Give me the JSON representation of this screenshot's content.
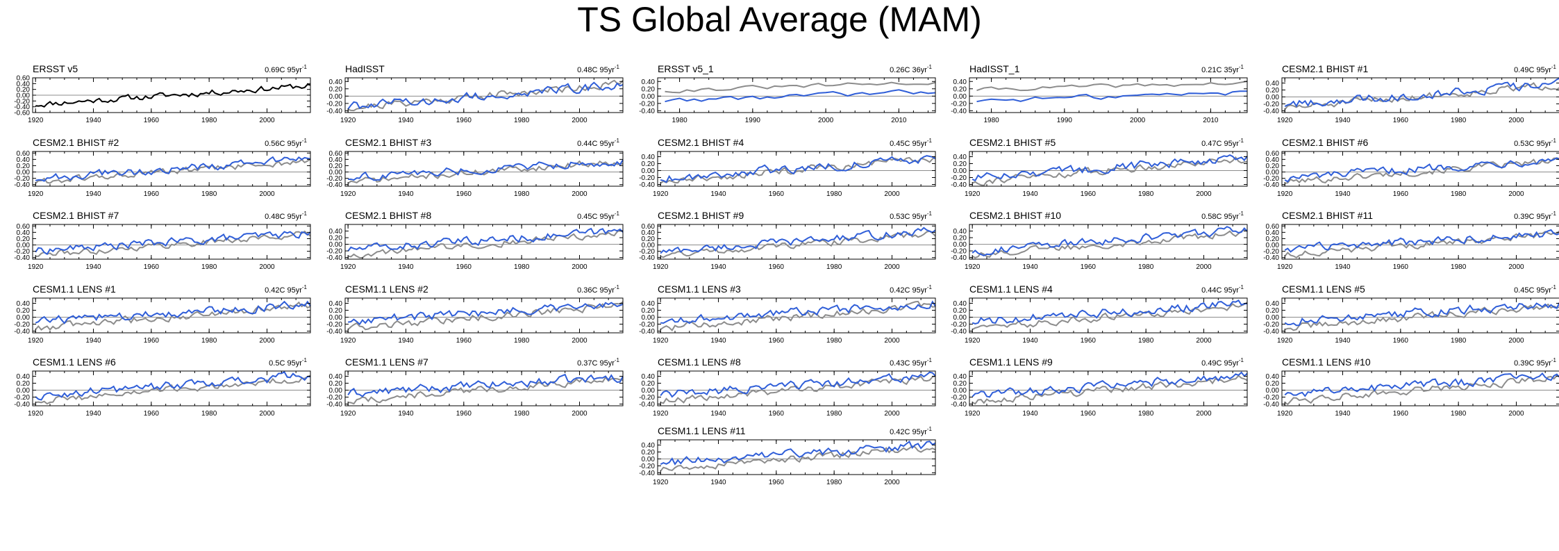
{
  "title": "TS Global Average (MAM)",
  "colors": {
    "observed": "#8c8c8c",
    "model": "#2f5ed8",
    "ersst_line": "#000000",
    "zero_line": "#8c8c8c"
  },
  "chart_data": [
    {
      "type": "line",
      "title": "ERSST v5",
      "trend": "0.69C 95yr",
      "xlim": [
        1919,
        2015
      ],
      "xticks": [
        1920,
        1940,
        1960,
        1980,
        2000
      ],
      "ylim": [
        -0.6,
        0.6
      ],
      "yticks": [
        "0.60",
        "0.40",
        "0.20",
        "0.00",
        "-0.20",
        "-0.40",
        "-0.60"
      ],
      "tick_values": [
        0.6,
        0.4,
        0.2,
        0.0,
        -0.2,
        -0.4,
        -0.6
      ],
      "base_start": -0.32,
      "base_end": 0.33,
      "seed": 11,
      "single": true
    },
    {
      "type": "line",
      "title": "HadISST",
      "trend": "0.48C 95yr",
      "xlim": [
        1919,
        2015
      ],
      "xticks": [
        1920,
        1940,
        1960,
        1980,
        2000
      ],
      "ylim": [
        -0.45,
        0.5
      ],
      "yticks": [
        "0.40",
        "0.20",
        "0.00",
        "-0.20",
        "-0.40"
      ],
      "tick_values": [
        0.4,
        0.2,
        0.0,
        -0.2,
        -0.4
      ],
      "base_start": -0.32,
      "base_end": 0.35,
      "seed": 21,
      "model_start": -0.3,
      "model_end": 0.3
    },
    {
      "type": "line",
      "title": "ERSST v5_1",
      "trend": "0.26C 36yr",
      "xlim": [
        1977,
        2015
      ],
      "xticks": [
        1980,
        1990,
        2000,
        2010
      ],
      "ylim": [
        -0.45,
        0.5
      ],
      "yticks": [
        "0.40",
        "0.20",
        "0.00",
        "-0.20",
        "-0.40"
      ],
      "tick_values": [
        0.4,
        0.2,
        0.0,
        -0.2,
        -0.4
      ],
      "base_start": 0.15,
      "base_end": 0.38,
      "seed": 31,
      "model_start": -0.12,
      "model_end": 0.12
    },
    {
      "type": "line",
      "title": "HadISST_1",
      "trend": "0.21C 35yr",
      "xlim": [
        1977,
        2015
      ],
      "xticks": [
        1980,
        1990,
        2000,
        2010
      ],
      "ylim": [
        -0.45,
        0.5
      ],
      "yticks": [
        "0.40",
        "0.20",
        "0.00",
        "-0.20",
        "-0.40"
      ],
      "tick_values": [
        0.4,
        0.2,
        0.0,
        -0.2,
        -0.4
      ],
      "base_start": 0.18,
      "base_end": 0.36,
      "seed": 41,
      "model_start": -0.12,
      "model_end": 0.1
    },
    {
      "type": "line",
      "title": "CESM2.1 BHIST #1",
      "trend": "0.49C 95yr",
      "xlim": [
        1919,
        2015
      ],
      "xticks": [
        1920,
        1940,
        1960,
        1980,
        2000
      ],
      "ylim": [
        -0.45,
        0.55
      ],
      "yticks": [
        "0.40",
        "0.20",
        "0.00",
        "-0.20",
        "-0.40"
      ],
      "tick_values": [
        0.4,
        0.2,
        0.0,
        -0.2,
        -0.4
      ],
      "base_start": -0.32,
      "base_end": 0.35,
      "seed": 51,
      "model_start": -0.22,
      "model_end": 0.38
    },
    {
      "type": "line",
      "title": "CESM2.1 BHIST #2",
      "trend": "0.56C 95yr",
      "xlim": [
        1919,
        2015
      ],
      "xticks": [
        1920,
        1940,
        1960,
        1980,
        2000
      ],
      "ylim": [
        -0.45,
        0.65
      ],
      "yticks": [
        "0.60",
        "0.40",
        "0.20",
        "0.00",
        "-0.20",
        "-0.40"
      ],
      "tick_values": [
        0.6,
        0.4,
        0.2,
        0.0,
        -0.2,
        -0.4
      ],
      "base_start": -0.32,
      "base_end": 0.35,
      "seed": 61,
      "model_start": -0.22,
      "model_end": 0.42
    },
    {
      "type": "line",
      "title": "CESM2.1 BHIST #3",
      "trend": "0.44C 95yr",
      "xlim": [
        1919,
        2015
      ],
      "xticks": [
        1920,
        1940,
        1960,
        1980,
        2000
      ],
      "ylim": [
        -0.45,
        0.65
      ],
      "yticks": [
        "0.60",
        "0.40",
        "0.20",
        "0.00",
        "-0.20",
        "-0.40"
      ],
      "tick_values": [
        0.6,
        0.4,
        0.2,
        0.0,
        -0.2,
        -0.4
      ],
      "base_start": -0.32,
      "base_end": 0.35,
      "seed": 71,
      "model_start": -0.18,
      "model_end": 0.35
    },
    {
      "type": "line",
      "title": "CESM2.1 BHIST #4",
      "trend": "0.45C 95yr",
      "xlim": [
        1919,
        2015
      ],
      "xticks": [
        1920,
        1940,
        1960,
        1980,
        2000
      ],
      "ylim": [
        -0.45,
        0.55
      ],
      "yticks": [
        "0.40",
        "0.20",
        "0.00",
        "-0.20",
        "-0.40"
      ],
      "tick_values": [
        0.4,
        0.2,
        0.0,
        -0.2,
        -0.4
      ],
      "base_start": -0.32,
      "base_end": 0.35,
      "seed": 81,
      "model_start": -0.22,
      "model_end": 0.35
    },
    {
      "type": "line",
      "title": "CESM2.1 BHIST #5",
      "trend": "0.47C 95yr",
      "xlim": [
        1919,
        2015
      ],
      "xticks": [
        1920,
        1940,
        1960,
        1980,
        2000
      ],
      "ylim": [
        -0.45,
        0.55
      ],
      "yticks": [
        "0.40",
        "0.20",
        "0.00",
        "-0.20",
        "-0.40"
      ],
      "tick_values": [
        0.4,
        0.2,
        0.0,
        -0.2,
        -0.4
      ],
      "base_start": -0.32,
      "base_end": 0.35,
      "seed": 91,
      "model_start": -0.2,
      "model_end": 0.38
    },
    {
      "type": "line",
      "title": "CESM2.1 BHIST #6",
      "trend": "0.53C 95yr",
      "xlim": [
        1919,
        2015
      ],
      "xticks": [
        1920,
        1940,
        1960,
        1980,
        2000
      ],
      "ylim": [
        -0.45,
        0.65
      ],
      "yticks": [
        "0.60",
        "0.40",
        "0.20",
        "0.00",
        "-0.20",
        "-0.40"
      ],
      "tick_values": [
        0.6,
        0.4,
        0.2,
        0.0,
        -0.2,
        -0.4
      ],
      "base_start": -0.32,
      "base_end": 0.35,
      "seed": 101,
      "model_start": -0.2,
      "model_end": 0.42
    },
    {
      "type": "line",
      "title": "CESM2.1 BHIST #7",
      "trend": "0.48C 95yr",
      "xlim": [
        1919,
        2015
      ],
      "xticks": [
        1920,
        1940,
        1960,
        1980,
        2000
      ],
      "ylim": [
        -0.45,
        0.65
      ],
      "yticks": [
        "0.60",
        "0.40",
        "0.20",
        "0.00",
        "-0.20",
        "-0.40"
      ],
      "tick_values": [
        0.6,
        0.4,
        0.2,
        0.0,
        -0.2,
        -0.4
      ],
      "base_start": -0.32,
      "base_end": 0.35,
      "seed": 111,
      "model_start": -0.18,
      "model_end": 0.38
    },
    {
      "type": "line",
      "title": "CESM2.1 BHIST #8",
      "trend": "0.45C 95yr",
      "xlim": [
        1919,
        2015
      ],
      "xticks": [
        1920,
        1940,
        1960,
        1980,
        2000
      ],
      "ylim": [
        -0.45,
        0.6
      ],
      "yticks": [
        "0.40",
        "0.20",
        "0.00",
        "-0.20",
        "-0.40"
      ],
      "tick_values": [
        0.4,
        0.2,
        0.0,
        -0.2,
        -0.4
      ],
      "base_start": -0.32,
      "base_end": 0.35,
      "seed": 121,
      "model_start": -0.16,
      "model_end": 0.4
    },
    {
      "type": "line",
      "title": "CESM2.1 BHIST #9",
      "trend": "0.53C 95yr",
      "xlim": [
        1919,
        2015
      ],
      "xticks": [
        1920,
        1940,
        1960,
        1980,
        2000
      ],
      "ylim": [
        -0.45,
        0.65
      ],
      "yticks": [
        "0.60",
        "0.40",
        "0.20",
        "0.00",
        "-0.20",
        "-0.40"
      ],
      "tick_values": [
        0.6,
        0.4,
        0.2,
        0.0,
        -0.2,
        -0.4
      ],
      "base_start": -0.32,
      "base_end": 0.35,
      "seed": 131,
      "model_start": -0.22,
      "model_end": 0.45
    },
    {
      "type": "line",
      "title": "CESM2.1 BHIST #10",
      "trend": "0.58C 95yr",
      "xlim": [
        1919,
        2015
      ],
      "xticks": [
        1920,
        1940,
        1960,
        1980,
        2000
      ],
      "ylim": [
        -0.45,
        0.6
      ],
      "yticks": [
        "0.40",
        "0.20",
        "0.00",
        "-0.20",
        "-0.40"
      ],
      "tick_values": [
        0.4,
        0.2,
        0.0,
        -0.2,
        -0.4
      ],
      "base_start": -0.32,
      "base_end": 0.35,
      "seed": 141,
      "model_start": -0.22,
      "model_end": 0.45
    },
    {
      "type": "line",
      "title": "CESM2.1 BHIST #11",
      "trend": "0.39C 95yr",
      "xlim": [
        1919,
        2015
      ],
      "xticks": [
        1920,
        1940,
        1960,
        1980,
        2000
      ],
      "ylim": [
        -0.45,
        0.65
      ],
      "yticks": [
        "0.60",
        "0.40",
        "0.20",
        "0.00",
        "-0.20",
        "-0.40"
      ],
      "tick_values": [
        0.6,
        0.4,
        0.2,
        0.0,
        -0.2,
        -0.4
      ],
      "base_start": -0.32,
      "base_end": 0.35,
      "seed": 151,
      "model_start": -0.12,
      "model_end": 0.35
    },
    {
      "type": "line",
      "title": "CESM1.1 LENS #1",
      "trend": "0.42C 95yr",
      "xlim": [
        1919,
        2015
      ],
      "xticks": [
        1920,
        1940,
        1960,
        1980,
        2000
      ],
      "ylim": [
        -0.45,
        0.55
      ],
      "yticks": [
        "0.40",
        "0.20",
        "0.00",
        "-0.20",
        "-0.40"
      ],
      "tick_values": [
        0.4,
        0.2,
        0.0,
        -0.2,
        -0.4
      ],
      "base_start": -0.32,
      "base_end": 0.35,
      "seed": 161,
      "model_start": -0.12,
      "model_end": 0.38
    },
    {
      "type": "line",
      "title": "CESM1.1 LENS #2",
      "trend": "0.36C 95yr",
      "xlim": [
        1919,
        2015
      ],
      "xticks": [
        1920,
        1940,
        1960,
        1980,
        2000
      ],
      "ylim": [
        -0.45,
        0.55
      ],
      "yticks": [
        "0.40",
        "0.20",
        "0.00",
        "-0.20",
        "-0.40"
      ],
      "tick_values": [
        0.4,
        0.2,
        0.0,
        -0.2,
        -0.4
      ],
      "base_start": -0.32,
      "base_end": 0.35,
      "seed": 171,
      "model_start": -0.1,
      "model_end": 0.38
    },
    {
      "type": "line",
      "title": "CESM1.1 LENS #3",
      "trend": "0.42C 95yr",
      "xlim": [
        1919,
        2015
      ],
      "xticks": [
        1920,
        1940,
        1960,
        1980,
        2000
      ],
      "ylim": [
        -0.45,
        0.55
      ],
      "yticks": [
        "0.40",
        "0.20",
        "0.00",
        "-0.20",
        "-0.40"
      ],
      "tick_values": [
        0.4,
        0.2,
        0.0,
        -0.2,
        -0.4
      ],
      "base_start": -0.32,
      "base_end": 0.35,
      "seed": 181,
      "model_start": -0.12,
      "model_end": 0.4
    },
    {
      "type": "line",
      "title": "CESM1.1 LENS #4",
      "trend": "0.44C 95yr",
      "xlim": [
        1919,
        2015
      ],
      "xticks": [
        1920,
        1940,
        1960,
        1980,
        2000
      ],
      "ylim": [
        -0.45,
        0.55
      ],
      "yticks": [
        "0.40",
        "0.20",
        "0.00",
        "-0.20",
        "-0.40"
      ],
      "tick_values": [
        0.4,
        0.2,
        0.0,
        -0.2,
        -0.4
      ],
      "base_start": -0.32,
      "base_end": 0.35,
      "seed": 191,
      "model_start": -0.12,
      "model_end": 0.4
    },
    {
      "type": "line",
      "title": "CESM1.1 LENS #5",
      "trend": "0.45C 95yr",
      "xlim": [
        1919,
        2015
      ],
      "xticks": [
        1920,
        1940,
        1960,
        1980,
        2000
      ],
      "ylim": [
        -0.45,
        0.55
      ],
      "yticks": [
        "0.40",
        "0.20",
        "0.00",
        "-0.20",
        "-0.40"
      ],
      "tick_values": [
        0.4,
        0.2,
        0.0,
        -0.2,
        -0.4
      ],
      "base_start": -0.32,
      "base_end": 0.35,
      "seed": 201,
      "model_start": -0.12,
      "model_end": 0.4
    },
    {
      "type": "line",
      "title": "CESM1.1 LENS #6",
      "trend": "0.5C 95yr",
      "xlim": [
        1919,
        2015
      ],
      "xticks": [
        1920,
        1940,
        1960,
        1980,
        2000
      ],
      "ylim": [
        -0.45,
        0.55
      ],
      "yticks": [
        "0.40",
        "0.20",
        "0.00",
        "-0.20",
        "-0.40"
      ],
      "tick_values": [
        0.4,
        0.2,
        0.0,
        -0.2,
        -0.4
      ],
      "base_start": -0.32,
      "base_end": 0.35,
      "seed": 211,
      "model_start": -0.15,
      "model_end": 0.42
    },
    {
      "type": "line",
      "title": "CESM1.1 LENS #7",
      "trend": "0.37C 95yr",
      "xlim": [
        1919,
        2015
      ],
      "xticks": [
        1920,
        1940,
        1960,
        1980,
        2000
      ],
      "ylim": [
        -0.45,
        0.55
      ],
      "yticks": [
        "0.40",
        "0.20",
        "0.00",
        "-0.20",
        "-0.40"
      ],
      "tick_values": [
        0.4,
        0.2,
        0.0,
        -0.2,
        -0.4
      ],
      "base_start": -0.32,
      "base_end": 0.35,
      "seed": 221,
      "model_start": -0.1,
      "model_end": 0.38
    },
    {
      "type": "line",
      "title": "CESM1.1 LENS #8",
      "trend": "0.43C 95yr",
      "xlim": [
        1919,
        2015
      ],
      "xticks": [
        1920,
        1940,
        1960,
        1980,
        2000
      ],
      "ylim": [
        -0.45,
        0.55
      ],
      "yticks": [
        "0.40",
        "0.20",
        "0.00",
        "-0.20",
        "-0.40"
      ],
      "tick_values": [
        0.4,
        0.2,
        0.0,
        -0.2,
        -0.4
      ],
      "base_start": -0.32,
      "base_end": 0.35,
      "seed": 231,
      "model_start": -0.12,
      "model_end": 0.4
    },
    {
      "type": "line",
      "title": "CESM1.1 LENS #9",
      "trend": "0.49C 95yr",
      "xlim": [
        1919,
        2015
      ],
      "xticks": [
        1920,
        1940,
        1960,
        1980,
        2000
      ],
      "ylim": [
        -0.45,
        0.55
      ],
      "yticks": [
        "0.40",
        "0.20",
        "0.00",
        "-0.20",
        "-0.40"
      ],
      "tick_values": [
        0.4,
        0.2,
        0.0,
        -0.2,
        -0.4
      ],
      "base_start": -0.32,
      "base_end": 0.35,
      "seed": 241,
      "model_start": -0.15,
      "model_end": 0.42
    },
    {
      "type": "line",
      "title": "CESM1.1 LENS #10",
      "trend": "0.39C 95yr",
      "xlim": [
        1919,
        2015
      ],
      "xticks": [
        1920,
        1940,
        1960,
        1980,
        2000
      ],
      "ylim": [
        -0.45,
        0.55
      ],
      "yticks": [
        "0.40",
        "0.20",
        "0.00",
        "-0.20",
        "-0.40"
      ],
      "tick_values": [
        0.4,
        0.2,
        0.0,
        -0.2,
        -0.4
      ],
      "base_start": -0.32,
      "base_end": 0.35,
      "seed": 251,
      "model_start": -0.1,
      "model_end": 0.38
    },
    {
      "type": "line",
      "title": "CESM1.1 LENS #11",
      "trend": "0.42C 95yr",
      "xlim": [
        1919,
        2015
      ],
      "xticks": [
        1920,
        1940,
        1960,
        1980,
        2000
      ],
      "ylim": [
        -0.45,
        0.55
      ],
      "yticks": [
        "0.40",
        "0.20",
        "0.00",
        "-0.20",
        "-0.40"
      ],
      "tick_values": [
        0.4,
        0.2,
        0.0,
        -0.2,
        -0.4
      ],
      "base_start": -0.32,
      "base_end": 0.35,
      "seed": 261,
      "model_start": -0.12,
      "model_end": 0.4
    }
  ]
}
